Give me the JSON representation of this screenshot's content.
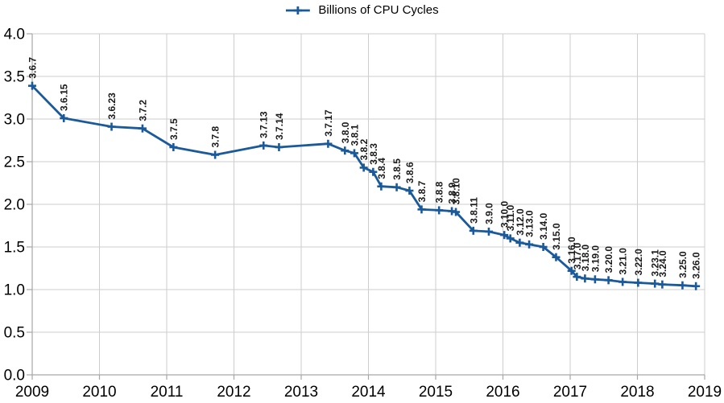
{
  "chart_data": {
    "type": "line",
    "title": "",
    "legend_position": "top-center",
    "grid": true,
    "x_axis": {
      "lim": [
        2009,
        2019
      ],
      "ticks": [
        2009,
        2010,
        2011,
        2012,
        2013,
        2014,
        2015,
        2016,
        2017,
        2018,
        2019
      ]
    },
    "y_axis": {
      "lim": [
        0,
        4
      ],
      "ticks": [
        0.0,
        0.5,
        1.0,
        1.5,
        2.0,
        2.5,
        3.0,
        3.5,
        4.0
      ],
      "decimals": 1
    },
    "colors": {
      "line": "#1a5a9a",
      "grid": "#cdcdcd",
      "axis": "#a6a6a6",
      "tick_text": "#000000",
      "point_label": "#1a1a1a"
    },
    "series": [
      {
        "name": "Billions of CPU Cycles",
        "color": "#1a5a9a",
        "marker": "plus",
        "points": [
          {
            "label": "3.6.7",
            "x": 2009.0,
            "y": 3.39
          },
          {
            "label": "3.6.15",
            "x": 2009.47,
            "y": 3.01
          },
          {
            "label": "3.6.23",
            "x": 2010.18,
            "y": 2.91
          },
          {
            "label": "3.7.2",
            "x": 2010.64,
            "y": 2.89
          },
          {
            "label": "3.7.5",
            "x": 2011.1,
            "y": 2.67
          },
          {
            "label": "3.7.8",
            "x": 2011.72,
            "y": 2.58
          },
          {
            "label": "3.7.13",
            "x": 2012.44,
            "y": 2.69
          },
          {
            "label": "3.7.14",
            "x": 2012.67,
            "y": 2.67
          },
          {
            "label": "3.7.17",
            "x": 2013.4,
            "y": 2.71
          },
          {
            "label": "3.8.0",
            "x": 2013.65,
            "y": 2.63
          },
          {
            "label": "3.8.1",
            "x": 2013.79,
            "y": 2.6
          },
          {
            "label": "3.8.2",
            "x": 2013.93,
            "y": 2.43
          },
          {
            "label": "3.8.3",
            "x": 2014.07,
            "y": 2.38
          },
          {
            "label": "3.8.4",
            "x": 2014.19,
            "y": 2.21
          },
          {
            "label": "3.8.5",
            "x": 2014.42,
            "y": 2.2
          },
          {
            "label": "3.8.6",
            "x": 2014.61,
            "y": 2.16
          },
          {
            "label": "3.8.7",
            "x": 2014.79,
            "y": 1.94
          },
          {
            "label": "3.8.8",
            "x": 2015.05,
            "y": 1.93
          },
          {
            "label": "3.8.9",
            "x": 2015.24,
            "y": 1.92
          },
          {
            "label": "3.8.10",
            "x": 2015.3,
            "y": 1.91
          },
          {
            "label": "3.8.11",
            "x": 2015.56,
            "y": 1.69
          },
          {
            "label": "3.9.0",
            "x": 2015.79,
            "y": 1.68
          },
          {
            "label": "3.10.0",
            "x": 2016.02,
            "y": 1.64
          },
          {
            "label": "3.11.0",
            "x": 2016.11,
            "y": 1.6
          },
          {
            "label": "3.12.0",
            "x": 2016.25,
            "y": 1.55
          },
          {
            "label": "3.13.0",
            "x": 2016.39,
            "y": 1.53
          },
          {
            "label": "3.14.0",
            "x": 2016.6,
            "y": 1.5
          },
          {
            "label": "3.15.0",
            "x": 2016.79,
            "y": 1.38
          },
          {
            "label": "3.16.0",
            "x": 2017.02,
            "y": 1.22
          },
          {
            "label": "3.17.0",
            "x": 2017.1,
            "y": 1.15
          },
          {
            "label": "3.18.0",
            "x": 2017.22,
            "y": 1.13
          },
          {
            "label": "3.19.0",
            "x": 2017.37,
            "y": 1.12
          },
          {
            "label": "3.20.0",
            "x": 2017.57,
            "y": 1.11
          },
          {
            "label": "3.21.0",
            "x": 2017.78,
            "y": 1.09
          },
          {
            "label": "3.22.0",
            "x": 2018.01,
            "y": 1.08
          },
          {
            "label": "3.23.1",
            "x": 2018.26,
            "y": 1.07
          },
          {
            "label": "3.24.0",
            "x": 2018.37,
            "y": 1.06
          },
          {
            "label": "3.25.0",
            "x": 2018.67,
            "y": 1.05
          },
          {
            "label": "3.26.0",
            "x": 2018.87,
            "y": 1.04
          }
        ]
      }
    ]
  }
}
